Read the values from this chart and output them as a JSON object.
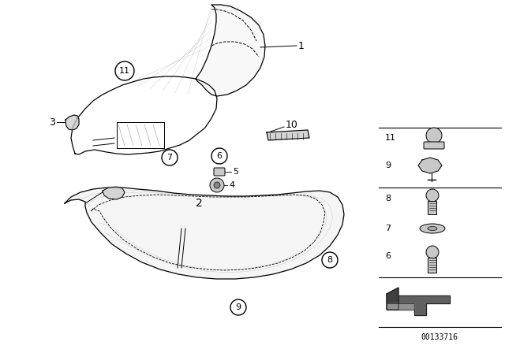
{
  "background_color": "#ffffff",
  "watermark": "00133716",
  "line_color": "#000000",
  "gray_fill": "#c8c8c8",
  "light_gray": "#e8e8e8"
}
